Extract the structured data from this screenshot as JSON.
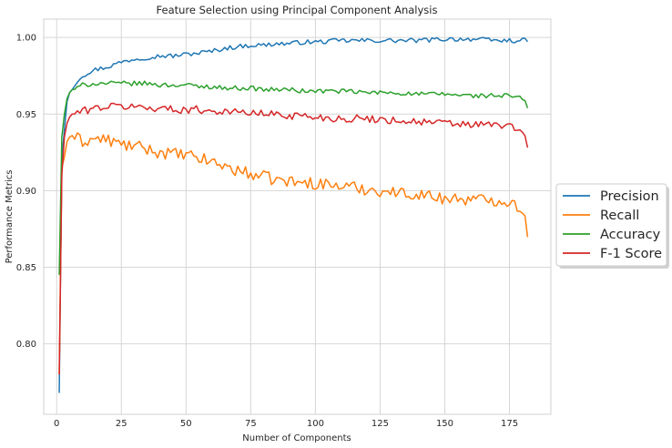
{
  "chart_data": {
    "type": "line",
    "title": "Feature Selection using Principal Component Analysis",
    "xlabel": "Number of Components",
    "ylabel": "Performance Metrics",
    "xlim": [
      -5,
      191
    ],
    "ylim": [
      0.754,
      1.012
    ],
    "xticks": [
      0,
      25,
      50,
      75,
      100,
      125,
      150,
      175
    ],
    "xtick_labels": [
      "0",
      "25",
      "50",
      "75",
      "100",
      "125",
      "150",
      "175"
    ],
    "yticks": [
      0.8,
      0.85,
      0.9,
      0.95,
      1.0
    ],
    "ytick_labels": [
      "0.80",
      "0.85",
      "0.90",
      "0.95",
      "1.00"
    ],
    "grid": true,
    "legend_position": "right",
    "x_start": 1,
    "x_end": 182,
    "series": [
      {
        "name": "Precision",
        "color": "#1f77b4",
        "anchors": [
          [
            1,
            0.768
          ],
          [
            2,
            0.92
          ],
          [
            3,
            0.94
          ],
          [
            4,
            0.958
          ],
          [
            5,
            0.964
          ],
          [
            6,
            0.966
          ],
          [
            8,
            0.972
          ],
          [
            10,
            0.975
          ],
          [
            12,
            0.977
          ],
          [
            15,
            0.979
          ],
          [
            20,
            0.981
          ],
          [
            25,
            0.984
          ],
          [
            30,
            0.986
          ],
          [
            35,
            0.987
          ],
          [
            40,
            0.988
          ],
          [
            45,
            0.988
          ],
          [
            50,
            0.989
          ],
          [
            55,
            0.99
          ],
          [
            60,
            0.991
          ],
          [
            65,
            0.993
          ],
          [
            70,
            0.994
          ],
          [
            75,
            0.995
          ],
          [
            80,
            0.995
          ],
          [
            85,
            0.996
          ],
          [
            90,
            0.996
          ],
          [
            95,
            0.997
          ],
          [
            100,
            0.997
          ],
          [
            110,
            0.998
          ],
          [
            120,
            0.998
          ],
          [
            130,
            0.998
          ],
          [
            140,
            0.998
          ],
          [
            150,
            0.999
          ],
          [
            160,
            0.999
          ],
          [
            170,
            0.998
          ],
          [
            175,
            0.998
          ],
          [
            182,
            0.998
          ]
        ],
        "noise": 0.0015
      },
      {
        "name": "Recall",
        "color": "#ff7f0e",
        "anchors": [
          [
            1,
            0.78
          ],
          [
            2,
            0.915
          ],
          [
            3,
            0.922
          ],
          [
            4,
            0.932
          ],
          [
            5,
            0.935
          ],
          [
            6,
            0.936
          ],
          [
            8,
            0.934
          ],
          [
            10,
            0.932
          ],
          [
            15,
            0.934
          ],
          [
            20,
            0.933
          ],
          [
            25,
            0.93
          ],
          [
            30,
            0.929
          ],
          [
            35,
            0.927
          ],
          [
            40,
            0.925
          ],
          [
            45,
            0.924
          ],
          [
            50,
            0.923
          ],
          [
            55,
            0.921
          ],
          [
            60,
            0.919
          ],
          [
            65,
            0.916
          ],
          [
            70,
            0.913
          ],
          [
            75,
            0.911
          ],
          [
            80,
            0.909
          ],
          [
            85,
            0.907
          ],
          [
            90,
            0.906
          ],
          [
            95,
            0.905
          ],
          [
            100,
            0.905
          ],
          [
            105,
            0.904
          ],
          [
            110,
            0.903
          ],
          [
            115,
            0.902
          ],
          [
            120,
            0.901
          ],
          [
            125,
            0.9
          ],
          [
            130,
            0.899
          ],
          [
            135,
            0.898
          ],
          [
            140,
            0.898
          ],
          [
            145,
            0.896
          ],
          [
            150,
            0.895
          ],
          [
            155,
            0.895
          ],
          [
            160,
            0.894
          ],
          [
            165,
            0.894
          ],
          [
            170,
            0.894
          ],
          [
            175,
            0.893
          ],
          [
            180,
            0.888
          ],
          [
            182,
            0.872
          ]
        ],
        "noise": 0.004
      },
      {
        "name": "Accuracy",
        "color": "#2ca02c",
        "anchors": [
          [
            1,
            0.845
          ],
          [
            2,
            0.935
          ],
          [
            3,
            0.95
          ],
          [
            4,
            0.96
          ],
          [
            5,
            0.964
          ],
          [
            6,
            0.966
          ],
          [
            8,
            0.967
          ],
          [
            10,
            0.969
          ],
          [
            15,
            0.97
          ],
          [
            20,
            0.97
          ],
          [
            25,
            0.97
          ],
          [
            30,
            0.97
          ],
          [
            35,
            0.97
          ],
          [
            40,
            0.969
          ],
          [
            45,
            0.969
          ],
          [
            50,
            0.969
          ],
          [
            55,
            0.968
          ],
          [
            60,
            0.968
          ],
          [
            65,
            0.967
          ],
          [
            70,
            0.967
          ],
          [
            75,
            0.967
          ],
          [
            80,
            0.966
          ],
          [
            85,
            0.966
          ],
          [
            90,
            0.966
          ],
          [
            95,
            0.965
          ],
          [
            100,
            0.965
          ],
          [
            110,
            0.965
          ],
          [
            120,
            0.964
          ],
          [
            130,
            0.964
          ],
          [
            140,
            0.963
          ],
          [
            150,
            0.963
          ],
          [
            160,
            0.962
          ],
          [
            170,
            0.962
          ],
          [
            175,
            0.962
          ],
          [
            180,
            0.96
          ],
          [
            182,
            0.955
          ]
        ],
        "noise": 0.0015
      },
      {
        "name": "F-1 Score",
        "color": "#d62728",
        "anchors": [
          [
            1,
            0.78
          ],
          [
            2,
            0.91
          ],
          [
            3,
            0.935
          ],
          [
            4,
            0.944
          ],
          [
            5,
            0.948
          ],
          [
            6,
            0.95
          ],
          [
            8,
            0.951
          ],
          [
            10,
            0.952
          ],
          [
            15,
            0.954
          ],
          [
            20,
            0.955
          ],
          [
            25,
            0.955
          ],
          [
            30,
            0.955
          ],
          [
            35,
            0.954
          ],
          [
            40,
            0.954
          ],
          [
            45,
            0.953
          ],
          [
            50,
            0.953
          ],
          [
            55,
            0.953
          ],
          [
            60,
            0.952
          ],
          [
            65,
            0.952
          ],
          [
            70,
            0.951
          ],
          [
            75,
            0.951
          ],
          [
            80,
            0.95
          ],
          [
            85,
            0.95
          ],
          [
            90,
            0.949
          ],
          [
            95,
            0.949
          ],
          [
            100,
            0.948
          ],
          [
            110,
            0.947
          ],
          [
            120,
            0.947
          ],
          [
            130,
            0.946
          ],
          [
            140,
            0.945
          ],
          [
            150,
            0.944
          ],
          [
            160,
            0.943
          ],
          [
            170,
            0.943
          ],
          [
            175,
            0.942
          ],
          [
            180,
            0.938
          ],
          [
            182,
            0.93
          ]
        ],
        "noise": 0.0025
      }
    ]
  }
}
